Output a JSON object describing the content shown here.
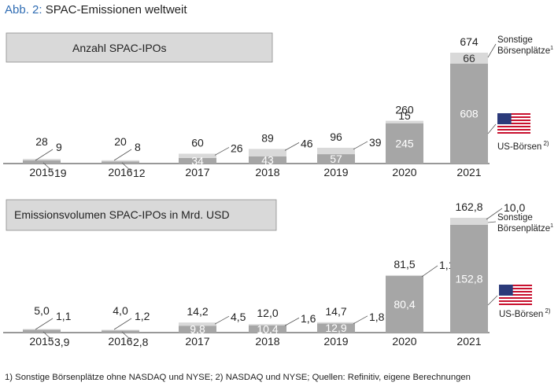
{
  "figure": {
    "label": "Abb. 2:",
    "title": "SPAC-Emissionen weltweit",
    "footnote": "1) Sonstige Börsenplätze ohne NASDAQ und NYSE; 2) NASDAQ und NYSE; Quellen: Refinitiv, eigene Berechnungen"
  },
  "colors": {
    "us": "#a6a6a6",
    "other": "#d9d9d9",
    "panel_box": "#d9d9d9",
    "axis": "#333333",
    "text_on_bar": "#ffffff",
    "flag_red": "#c8102e",
    "flag_blue": "#2b3a7a"
  },
  "chart_data": [
    {
      "type": "bar",
      "stacked": true,
      "title": "Anzahl SPAC-IPOs",
      "categories": [
        "2015",
        "2016",
        "2017",
        "2018",
        "2019",
        "2020",
        "2021"
      ],
      "series": [
        {
          "name": "US-Börsen",
          "footnote_mark": "2)",
          "values": [
            19,
            12,
            34,
            43,
            57,
            245,
            608
          ],
          "labels": [
            "19",
            "12",
            "34",
            "43",
            "57",
            "245",
            "608"
          ]
        },
        {
          "name": "Sonstige Börsenplätze",
          "footnote_mark": "1)",
          "values": [
            9,
            8,
            26,
            46,
            39,
            15,
            66
          ],
          "labels": [
            "9",
            "8",
            "26",
            "46",
            "39",
            "15",
            "66"
          ]
        }
      ],
      "totals": [
        "28",
        "20",
        "60",
        "89",
        "96",
        "260",
        "674"
      ],
      "ylim": [
        0,
        674
      ]
    },
    {
      "type": "bar",
      "stacked": true,
      "title": "Emissionsvolumen SPAC-IPOs in Mrd. USD",
      "categories": [
        "2015",
        "2016",
        "2017",
        "2018",
        "2019",
        "2020",
        "2021"
      ],
      "series": [
        {
          "name": "US-Börsen",
          "footnote_mark": "2)",
          "values": [
            3.9,
            2.8,
            9.8,
            10.4,
            12.9,
            80.4,
            152.8
          ],
          "labels": [
            "3,9",
            "2,8",
            "9,8",
            "10,4",
            "12,9",
            "80,4",
            "152,8"
          ]
        },
        {
          "name": "Sonstige Börsenplätze",
          "footnote_mark": "1)",
          "values": [
            1.1,
            1.2,
            4.5,
            1.6,
            1.8,
            1.1,
            10.0
          ],
          "labels": [
            "1,1",
            "1,2",
            "4,5",
            "1,6",
            "1,8",
            "1,1",
            "10,0"
          ]
        }
      ],
      "totals": [
        "5,0",
        "4,0",
        "14,2",
        "12,0",
        "14,7",
        "81,5",
        "162,8"
      ],
      "ylim": [
        0,
        162.8
      ]
    }
  ]
}
